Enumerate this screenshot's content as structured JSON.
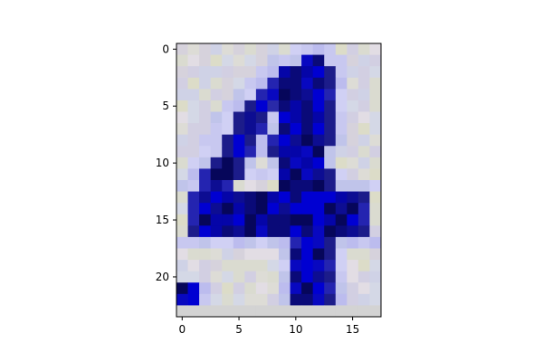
{
  "chart_data": {
    "type": "heatmap",
    "title": "",
    "xlabel": "",
    "ylabel": "",
    "grid": false,
    "legend": "none",
    "xlim": [
      -0.5,
      17.5
    ],
    "ylim": [
      23.5,
      -0.5
    ],
    "columns": 18,
    "rows": 24,
    "xticks": [
      "0",
      "5",
      "10",
      "15"
    ],
    "yticks": [
      "0",
      "5",
      "10",
      "15",
      "20"
    ],
    "colors": {
      "background": "#d2cfdc",
      "ink_dark": "#08084a",
      "ink_blue": "#0707c8",
      "ink_mid": "#2a2aa8",
      "halo": "#c9ccf2",
      "bottom_row": "#d3d3d3"
    },
    "ink_cells": [
      [
        1,
        [
          [
            11,
            4
          ],
          [
            12,
            4
          ]
        ]
      ],
      [
        2,
        [
          [
            9,
            4
          ],
          [
            10,
            4
          ],
          [
            11,
            4
          ],
          [
            12,
            4
          ],
          [
            13,
            3
          ]
        ]
      ],
      [
        3,
        [
          [
            8,
            3
          ],
          [
            9,
            4
          ],
          [
            10,
            4
          ],
          [
            11,
            4
          ],
          [
            12,
            4
          ],
          [
            13,
            3
          ]
        ]
      ],
      [
        4,
        [
          [
            7,
            3
          ],
          [
            8,
            4
          ],
          [
            9,
            4
          ],
          [
            10,
            4
          ],
          [
            11,
            4
          ],
          [
            12,
            4
          ],
          [
            13,
            3
          ]
        ]
      ],
      [
        5,
        [
          [
            6,
            3
          ],
          [
            7,
            4
          ],
          [
            8,
            2
          ],
          [
            9,
            4
          ],
          [
            10,
            4
          ],
          [
            11,
            4
          ],
          [
            12,
            4
          ],
          [
            13,
            3
          ]
        ]
      ],
      [
        6,
        [
          [
            5,
            3
          ],
          [
            6,
            4
          ],
          [
            7,
            3
          ],
          [
            9,
            4
          ],
          [
            10,
            4
          ],
          [
            11,
            4
          ],
          [
            12,
            4
          ],
          [
            13,
            3
          ]
        ]
      ],
      [
        7,
        [
          [
            5,
            3
          ],
          [
            6,
            4
          ],
          [
            7,
            3
          ],
          [
            9,
            4
          ],
          [
            10,
            4
          ],
          [
            11,
            4
          ],
          [
            12,
            4
          ],
          [
            13,
            3
          ]
        ]
      ],
      [
        8,
        [
          [
            4,
            3
          ],
          [
            5,
            4
          ],
          [
            6,
            3
          ],
          [
            8,
            3
          ],
          [
            9,
            4
          ],
          [
            10,
            4
          ],
          [
            11,
            4
          ],
          [
            12,
            4
          ],
          [
            13,
            3
          ]
        ]
      ],
      [
        9,
        [
          [
            4,
            3
          ],
          [
            5,
            4
          ],
          [
            6,
            3
          ],
          [
            8,
            3
          ],
          [
            9,
            4
          ],
          [
            10,
            4
          ],
          [
            11,
            4
          ],
          [
            12,
            4
          ]
        ]
      ],
      [
        10,
        [
          [
            3,
            3
          ],
          [
            4,
            4
          ],
          [
            5,
            3
          ],
          [
            9,
            4
          ],
          [
            10,
            4
          ],
          [
            11,
            4
          ],
          [
            12,
            4
          ]
        ]
      ],
      [
        11,
        [
          [
            2,
            3
          ],
          [
            3,
            4
          ],
          [
            4,
            4
          ],
          [
            5,
            3
          ],
          [
            9,
            4
          ],
          [
            10,
            4
          ],
          [
            11,
            4
          ],
          [
            12,
            4
          ],
          [
            13,
            3
          ]
        ]
      ],
      [
        12,
        [
          [
            2,
            3
          ],
          [
            3,
            4
          ],
          [
            4,
            3
          ],
          [
            9,
            4
          ],
          [
            10,
            4
          ],
          [
            11,
            4
          ],
          [
            12,
            4
          ],
          [
            13,
            3
          ]
        ]
      ],
      [
        13,
        [
          [
            1,
            3
          ],
          [
            2,
            4
          ],
          [
            3,
            4
          ],
          [
            4,
            4
          ],
          [
            5,
            4
          ],
          [
            6,
            4
          ],
          [
            7,
            4
          ],
          [
            8,
            4
          ],
          [
            9,
            4
          ],
          [
            10,
            4
          ],
          [
            11,
            4
          ],
          [
            12,
            4
          ],
          [
            13,
            4
          ],
          [
            14,
            4
          ],
          [
            15,
            4
          ],
          [
            16,
            3
          ]
        ]
      ],
      [
        14,
        [
          [
            1,
            3
          ],
          [
            2,
            4
          ],
          [
            3,
            4
          ],
          [
            4,
            4
          ],
          [
            5,
            4
          ],
          [
            6,
            4
          ],
          [
            7,
            4
          ],
          [
            8,
            4
          ],
          [
            9,
            4
          ],
          [
            10,
            4
          ],
          [
            11,
            4
          ],
          [
            12,
            4
          ],
          [
            13,
            4
          ],
          [
            14,
            4
          ],
          [
            15,
            4
          ],
          [
            16,
            3
          ]
        ]
      ],
      [
        15,
        [
          [
            1,
            3
          ],
          [
            2,
            4
          ],
          [
            3,
            4
          ],
          [
            4,
            4
          ],
          [
            5,
            4
          ],
          [
            6,
            4
          ],
          [
            7,
            4
          ],
          [
            8,
            4
          ],
          [
            9,
            4
          ],
          [
            10,
            4
          ],
          [
            11,
            4
          ],
          [
            12,
            4
          ],
          [
            13,
            4
          ],
          [
            14,
            4
          ],
          [
            15,
            4
          ],
          [
            16,
            3
          ]
        ]
      ],
      [
        16,
        [
          [
            1,
            3
          ],
          [
            2,
            4
          ],
          [
            3,
            4
          ],
          [
            4,
            4
          ],
          [
            5,
            4
          ],
          [
            6,
            4
          ],
          [
            7,
            4
          ],
          [
            8,
            4
          ],
          [
            9,
            4
          ],
          [
            10,
            4
          ],
          [
            11,
            4
          ],
          [
            12,
            4
          ],
          [
            13,
            4
          ],
          [
            14,
            4
          ],
          [
            15,
            4
          ],
          [
            16,
            3
          ]
        ]
      ],
      [
        17,
        [
          [
            10,
            3
          ],
          [
            11,
            4
          ],
          [
            12,
            4
          ],
          [
            13,
            3
          ]
        ]
      ],
      [
        18,
        [
          [
            10,
            4
          ],
          [
            11,
            4
          ],
          [
            12,
            4
          ],
          [
            13,
            3
          ]
        ]
      ],
      [
        19,
        [
          [
            10,
            4
          ],
          [
            11,
            4
          ],
          [
            12,
            4
          ],
          [
            13,
            3
          ]
        ]
      ],
      [
        20,
        [
          [
            10,
            4
          ],
          [
            11,
            4
          ],
          [
            12,
            4
          ],
          [
            13,
            3
          ]
        ]
      ],
      [
        21,
        [
          [
            0,
            4
          ],
          [
            1,
            4
          ],
          [
            10,
            4
          ],
          [
            11,
            4
          ],
          [
            12,
            4
          ],
          [
            13,
            3
          ]
        ]
      ],
      [
        22,
        [
          [
            0,
            4
          ],
          [
            1,
            4
          ],
          [
            10,
            4
          ],
          [
            11,
            4
          ],
          [
            12,
            4
          ],
          [
            13,
            3
          ]
        ]
      ]
    ],
    "halo_cells": [
      [
        0,
        [
          [
            10,
            1
          ],
          [
            11,
            1
          ],
          [
            12,
            1
          ],
          [
            13,
            1
          ]
        ]
      ],
      [
        1,
        [
          [
            8,
            1
          ],
          [
            9,
            1
          ],
          [
            10,
            1
          ],
          [
            13,
            1
          ],
          [
            14,
            1
          ]
        ]
      ],
      [
        2,
        [
          [
            7,
            1
          ],
          [
            8,
            1
          ],
          [
            14,
            1
          ]
        ]
      ],
      [
        3,
        [
          [
            6,
            1
          ],
          [
            7,
            1
          ],
          [
            14,
            1
          ]
        ]
      ],
      [
        4,
        [
          [
            5,
            1
          ],
          [
            6,
            1
          ],
          [
            14,
            1
          ]
        ]
      ],
      [
        5,
        [
          [
            4,
            1
          ],
          [
            5,
            1
          ],
          [
            14,
            1
          ]
        ]
      ],
      [
        6,
        [
          [
            3,
            1
          ],
          [
            4,
            1
          ],
          [
            8,
            1
          ],
          [
            14,
            1
          ]
        ]
      ],
      [
        7,
        [
          [
            3,
            1
          ],
          [
            4,
            1
          ],
          [
            8,
            1
          ],
          [
            14,
            1
          ]
        ]
      ],
      [
        8,
        [
          [
            2,
            1
          ],
          [
            3,
            1
          ],
          [
            7,
            1
          ],
          [
            14,
            1
          ]
        ]
      ],
      [
        9,
        [
          [
            2,
            1
          ],
          [
            3,
            1
          ],
          [
            7,
            1
          ],
          [
            13,
            1
          ]
        ]
      ],
      [
        10,
        [
          [
            1,
            1
          ],
          [
            2,
            1
          ],
          [
            6,
            1
          ],
          [
            8,
            1
          ],
          [
            13,
            1
          ]
        ]
      ],
      [
        11,
        [
          [
            1,
            1
          ],
          [
            6,
            1
          ],
          [
            7,
            1
          ],
          [
            8,
            1
          ],
          [
            14,
            1
          ]
        ]
      ],
      [
        12,
        [
          [
            0,
            1
          ],
          [
            1,
            1
          ],
          [
            14,
            1
          ],
          [
            15,
            1
          ],
          [
            16,
            1
          ],
          [
            17,
            1
          ]
        ]
      ],
      [
        17,
        [
          [
            0,
            1
          ],
          [
            1,
            1
          ],
          [
            2,
            1
          ],
          [
            3,
            1
          ],
          [
            4,
            1
          ],
          [
            5,
            1
          ],
          [
            6,
            1
          ],
          [
            7,
            1
          ],
          [
            8,
            1
          ],
          [
            9,
            1
          ],
          [
            14,
            1
          ],
          [
            15,
            1
          ],
          [
            16,
            1
          ],
          [
            17,
            1
          ]
        ]
      ],
      [
        18,
        [
          [
            9,
            1
          ],
          [
            14,
            1
          ]
        ]
      ],
      [
        19,
        [
          [
            9,
            1
          ],
          [
            14,
            1
          ]
        ]
      ],
      [
        20,
        [
          [
            9,
            1
          ],
          [
            14,
            1
          ]
        ]
      ],
      [
        21,
        [
          [
            2,
            1
          ],
          [
            9,
            1
          ],
          [
            14,
            1
          ]
        ]
      ],
      [
        22,
        [
          [
            2,
            1
          ],
          [
            9,
            1
          ],
          [
            14,
            1
          ]
        ]
      ]
    ]
  }
}
